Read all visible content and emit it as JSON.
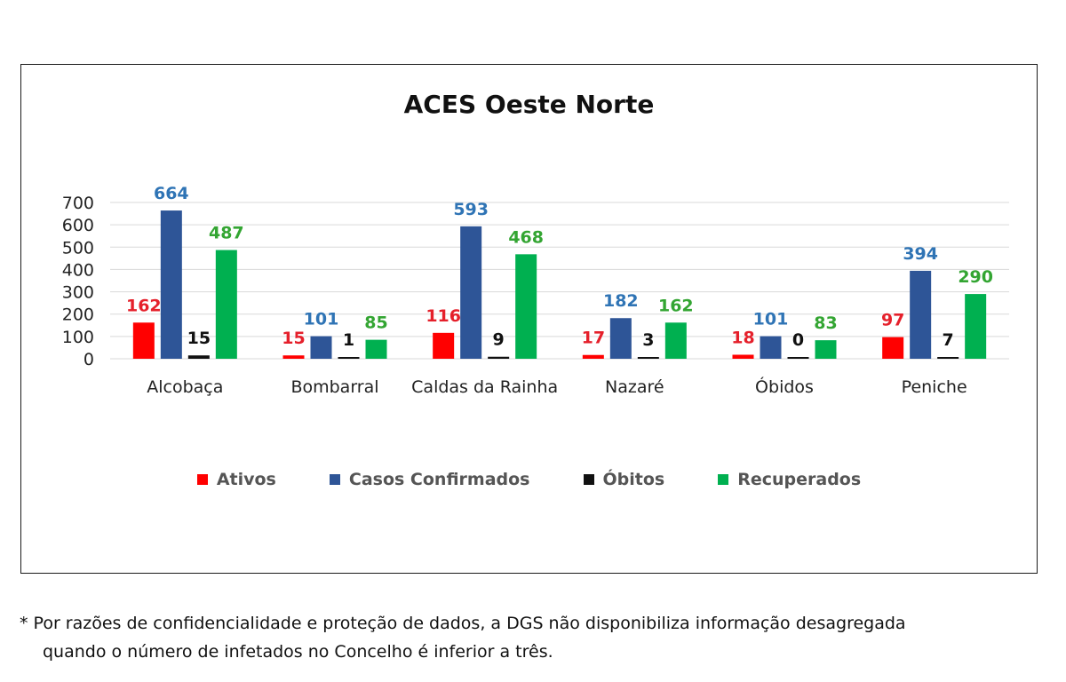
{
  "colors": {
    "Ativos": "#ff0000",
    "Casos Confirmados": "#2e5597",
    "Óbitos": "#111111",
    "Recuperados": "#00b050",
    "label_ativos": "#e5202b",
    "label_casos": "#2f74b5",
    "label_obitos": "#111111",
    "label_recuperados": "#33a532"
  },
  "chart_data": {
    "type": "bar",
    "title": "ACES Oeste Norte",
    "categories": [
      "Alcobaça",
      "Bombarral",
      "Caldas da Rainha",
      "Nazaré",
      "Óbidos",
      "Peniche"
    ],
    "series": [
      {
        "name": "Ativos",
        "values": [
          162,
          15,
          116,
          17,
          18,
          97
        ]
      },
      {
        "name": "Casos Confirmados",
        "values": [
          664,
          101,
          593,
          182,
          101,
          394
        ]
      },
      {
        "name": "Óbitos",
        "values": [
          15,
          1,
          9,
          3,
          0,
          7
        ]
      },
      {
        "name": "Recuperados",
        "values": [
          487,
          85,
          468,
          162,
          83,
          290
        ]
      }
    ],
    "ylim": [
      0,
      700
    ],
    "yticks": [
      "0",
      "100",
      "200",
      "300",
      "400",
      "500",
      "600",
      "700"
    ],
    "grid": true,
    "legend_position": "bottom"
  },
  "legend": {
    "items": [
      "Ativos",
      "Casos Confirmados",
      "Óbitos",
      "Recuperados"
    ]
  },
  "footnote": {
    "line1": "* Por razões de confidencialidade e proteção de dados, a DGS não disponibiliza informação desagregada",
    "line2": "quando o número de infetados no Concelho é inferior a três."
  }
}
